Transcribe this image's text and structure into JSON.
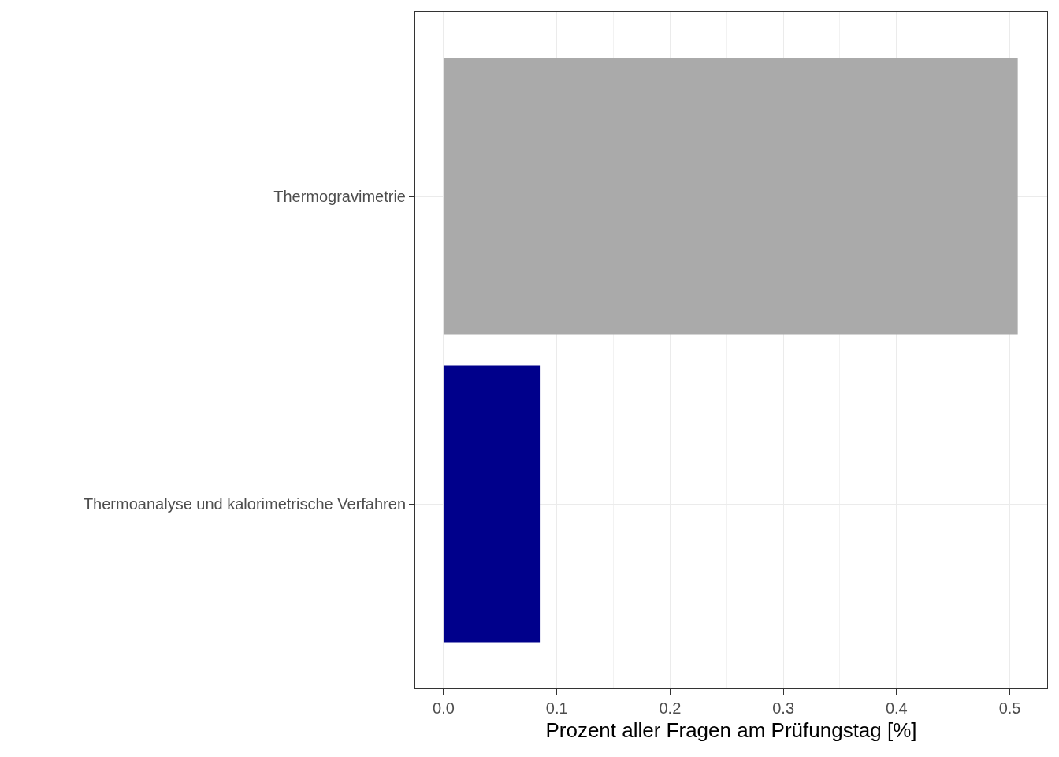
{
  "chart_data": {
    "type": "bar",
    "orientation": "horizontal",
    "xlabel": "Prozent aller Fragen am Prüfungstag [%]",
    "categories": [
      "Thermogravimetrie",
      "Thermoanalyse und kalorimetrische Verfahren"
    ],
    "values": [
      0.507,
      0.085
    ],
    "colors": [
      "#aaaaaa",
      "#00008b"
    ],
    "xlim": [
      -0.025,
      0.533
    ],
    "xticks": [
      {
        "value": 0,
        "label": "0.0"
      },
      {
        "value": 0.1,
        "label": "0.1"
      },
      {
        "value": 0.2,
        "label": "0.2"
      },
      {
        "value": 0.3,
        "label": "0.3"
      },
      {
        "value": 0.4,
        "label": "0.4"
      },
      {
        "value": 0.5,
        "label": "0.5"
      }
    ],
    "grid": true,
    "legend": false
  }
}
